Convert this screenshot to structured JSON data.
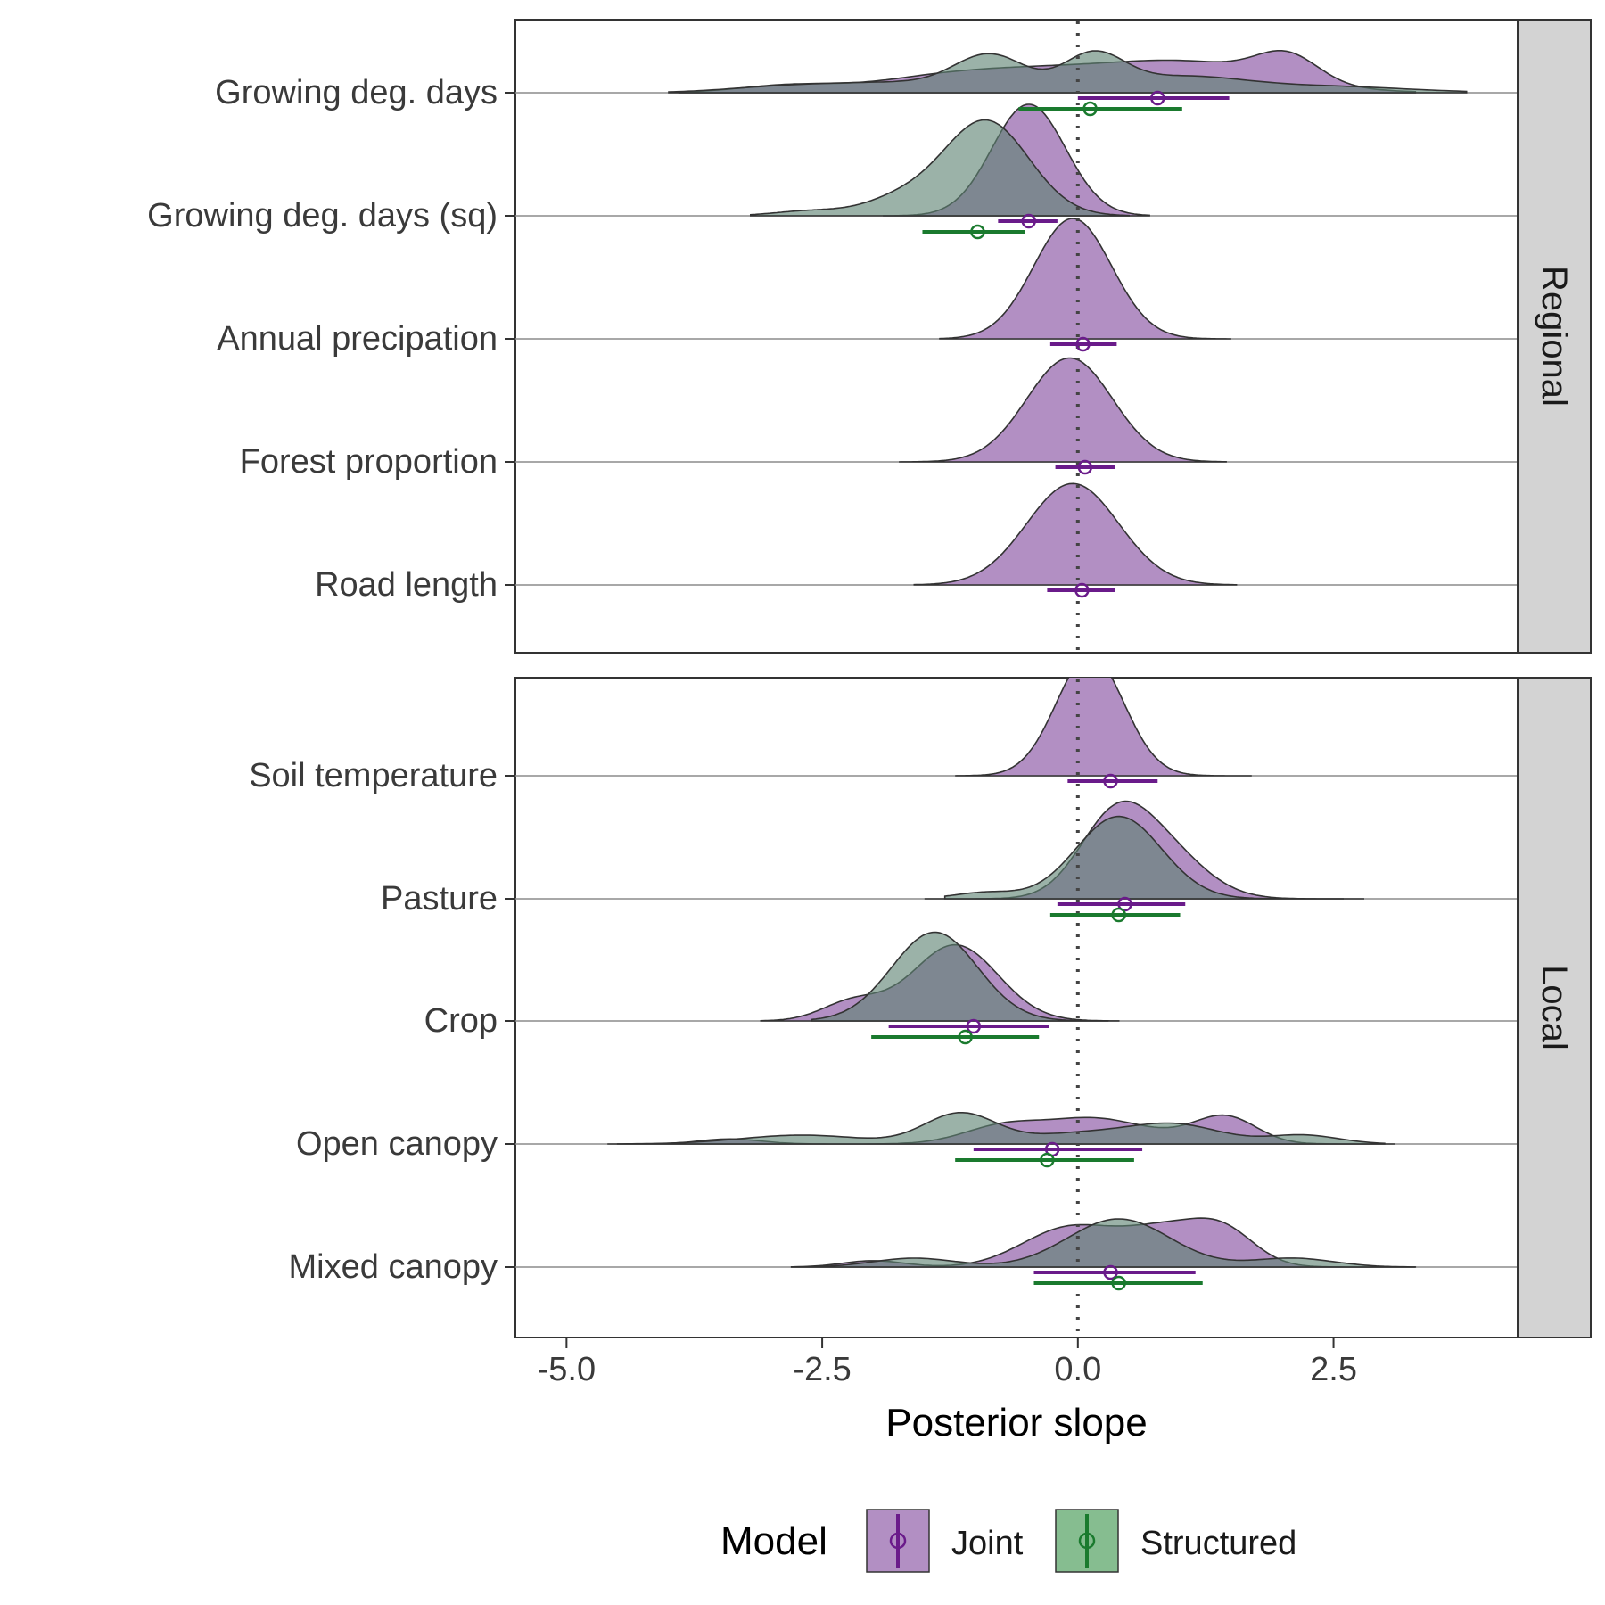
{
  "chart_data": {
    "type": "ridgeline",
    "xlabel": "Posterior slope",
    "xlim": [
      -5.5,
      4.3
    ],
    "x_ticks": [
      -5.0,
      -2.5,
      0.0,
      2.5
    ],
    "x_tick_labels": [
      "-5.0",
      "-2.5",
      "0.0",
      "2.5"
    ],
    "reference_line_x": 0,
    "legend": {
      "title": "Model",
      "position": "bottom",
      "entries": [
        {
          "name": "Joint",
          "fill": "#b28fc3",
          "line": "#6a1b8a"
        },
        {
          "name": "Structured",
          "fill": "#86bd90",
          "line": "#1a7a2e"
        }
      ]
    },
    "overlap_fill": "#5e8272",
    "panels": [
      {
        "strip_label": "Regional",
        "rows": [
          {
            "label": "Growing deg. days",
            "series": [
              {
                "model": "Joint",
                "mean": 0.78,
                "lo": 0.0,
                "hi": 1.48,
                "range": [
                  -3.9,
                  3.3
                ],
                "peaks": [
                  [
                    -2.8,
                    0.06,
                    0.5
                  ],
                  [
                    -1.5,
                    0.08,
                    0.6
                  ],
                  [
                    -0.6,
                    0.12,
                    0.7
                  ],
                  [
                    0.8,
                    0.18,
                    0.9
                  ],
                  [
                    2.05,
                    0.2,
                    0.3
                  ],
                  [
                    1.4,
                    0.08,
                    0.8
                  ]
                ]
              },
              {
                "model": "Structured",
                "mean": 0.12,
                "lo": -0.58,
                "hi": 1.02,
                "range": [
                  -4.0,
                  3.8
                ],
                "peaks": [
                  [
                    -2.8,
                    0.05,
                    0.6
                  ],
                  [
                    -1.7,
                    0.07,
                    0.6
                  ],
                  [
                    -0.85,
                    0.28,
                    0.35
                  ],
                  [
                    0.15,
                    0.28,
                    0.3
                  ],
                  [
                    1.0,
                    0.12,
                    0.6
                  ],
                  [
                    2.4,
                    0.05,
                    0.8
                  ]
                ]
              }
            ]
          },
          {
            "label": "Growing deg. days (sq)",
            "series": [
              {
                "model": "Joint",
                "mean": -0.48,
                "lo": -0.78,
                "hi": -0.2,
                "range": [
                  -1.9,
                  0.7
                ],
                "peaks": [
                  [
                    -0.48,
                    0.88,
                    0.36
                  ]
                ]
              },
              {
                "model": "Structured",
                "mean": -0.98,
                "lo": -1.52,
                "hi": -0.52,
                "range": [
                  -3.2,
                  0.5
                ],
                "peaks": [
                  [
                    -0.9,
                    0.75,
                    0.42
                  ],
                  [
                    -1.75,
                    0.12,
                    0.35
                  ],
                  [
                    -2.6,
                    0.04,
                    0.35
                  ]
                ]
              }
            ]
          },
          {
            "label": "Annual precipation",
            "series": [
              {
                "model": "Joint",
                "mean": 0.05,
                "lo": -0.27,
                "hi": 0.38,
                "range": [
                  -1.35,
                  1.5
                ],
                "peaks": [
                  [
                    -0.05,
                    0.95,
                    0.38
                  ]
                ]
              }
            ]
          },
          {
            "label": "Forest proportion",
            "series": [
              {
                "model": "Joint",
                "mean": 0.07,
                "lo": -0.22,
                "hi": 0.36,
                "range": [
                  -1.75,
                  1.45
                ],
                "peaks": [
                  [
                    -0.08,
                    0.82,
                    0.42
                  ]
                ]
              }
            ]
          },
          {
            "label": "Road length",
            "series": [
              {
                "model": "Joint",
                "mean": 0.04,
                "lo": -0.3,
                "hi": 0.36,
                "range": [
                  -1.6,
                  1.55
                ],
                "peaks": [
                  [
                    -0.05,
                    0.8,
                    0.45
                  ]
                ]
              }
            ]
          }
        ]
      },
      {
        "strip_label": "Local",
        "rows": [
          {
            "label": "Soil temperature",
            "series": [
              {
                "model": "Joint",
                "mean": 0.32,
                "lo": -0.1,
                "hi": 0.78,
                "range": [
                  -1.2,
                  1.7
                ],
                "peaks": [
                  [
                    0.12,
                    0.95,
                    0.33
                  ]
                ]
              }
            ]
          },
          {
            "label": "Pasture",
            "series": [
              {
                "model": "Joint",
                "mean": 0.46,
                "lo": -0.2,
                "hi": 1.05,
                "range": [
                  -1.5,
                  2.8
                ],
                "peaks": [
                  [
                    0.35,
                    0.58,
                    0.35
                  ],
                  [
                    0.85,
                    0.35,
                    0.4
                  ]
                ]
              },
              {
                "model": "Structured",
                "mean": 0.4,
                "lo": -0.27,
                "hi": 1.0,
                "range": [
                  -1.3,
                  2.6
                ],
                "peaks": [
                  [
                    0.4,
                    0.65,
                    0.42
                  ],
                  [
                    -0.9,
                    0.05,
                    0.3
                  ]
                ]
              }
            ]
          },
          {
            "label": "Crop",
            "series": [
              {
                "model": "Joint",
                "mean": -1.02,
                "lo": -1.85,
                "hi": -0.28,
                "range": [
                  -3.1,
                  0.4
                ],
                "peaks": [
                  [
                    -1.2,
                    0.6,
                    0.42
                  ],
                  [
                    -2.2,
                    0.15,
                    0.3
                  ]
                ]
              },
              {
                "model": "Structured",
                "mean": -1.1,
                "lo": -2.02,
                "hi": -0.38,
                "range": [
                  -2.6,
                  0.3
                ],
                "peaks": [
                  [
                    -1.4,
                    0.7,
                    0.42
                  ]
                ]
              }
            ]
          },
          {
            "label": "Open canopy",
            "series": [
              {
                "model": "Joint",
                "mean": -0.25,
                "lo": -1.02,
                "hi": 0.63,
                "range": [
                  -4.6,
                  3.1
                ],
                "peaks": [
                  [
                    -3.4,
                    0.04,
                    0.3
                  ],
                  [
                    -0.7,
                    0.15,
                    0.4
                  ],
                  [
                    0.1,
                    0.15,
                    0.4
                  ],
                  [
                    1.45,
                    0.2,
                    0.3
                  ],
                  [
                    0.7,
                    0.08,
                    0.5
                  ]
                ]
              },
              {
                "model": "Structured",
                "mean": -0.3,
                "lo": -1.2,
                "hi": 0.55,
                "range": [
                  -4.5,
                  3.0
                ],
                "peaks": [
                  [
                    -1.15,
                    0.24,
                    0.35
                  ],
                  [
                    -2.7,
                    0.07,
                    0.6
                  ],
                  [
                    0.95,
                    0.15,
                    0.45
                  ],
                  [
                    2.2,
                    0.07,
                    0.35
                  ],
                  [
                    0.0,
                    0.08,
                    0.5
                  ]
                ]
              }
            ]
          },
          {
            "label": "Mixed canopy",
            "series": [
              {
                "model": "Joint",
                "mean": 0.32,
                "lo": -0.43,
                "hi": 1.15,
                "range": [
                  -2.8,
                  3.3
                ],
                "peaks": [
                  [
                    -0.1,
                    0.3,
                    0.45
                  ],
                  [
                    0.9,
                    0.3,
                    0.45
                  ],
                  [
                    1.45,
                    0.2,
                    0.3
                  ],
                  [
                    -2.0,
                    0.05,
                    0.3
                  ]
                ]
              },
              {
                "model": "Structured",
                "mean": 0.4,
                "lo": -0.43,
                "hi": 1.22,
                "range": [
                  -2.8,
                  3.3
                ],
                "peaks": [
                  [
                    0.4,
                    0.38,
                    0.5
                  ],
                  [
                    -1.6,
                    0.07,
                    0.4
                  ],
                  [
                    2.1,
                    0.07,
                    0.4
                  ]
                ]
              }
            ]
          }
        ]
      }
    ]
  }
}
